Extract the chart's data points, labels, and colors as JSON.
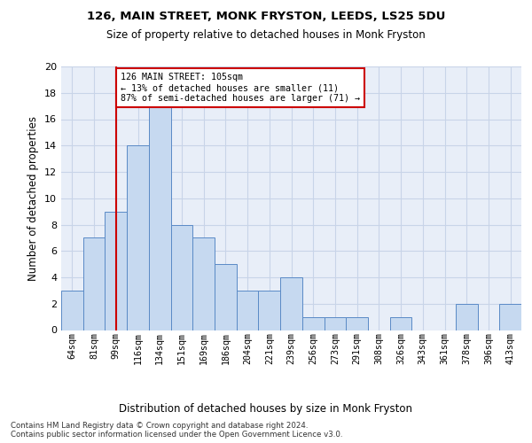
{
  "title1": "126, MAIN STREET, MONK FRYSTON, LEEDS, LS25 5DU",
  "title2": "Size of property relative to detached houses in Monk Fryston",
  "xlabel": "Distribution of detached houses by size in Monk Fryston",
  "ylabel": "Number of detached properties",
  "categories": [
    "64sqm",
    "81sqm",
    "99sqm",
    "116sqm",
    "134sqm",
    "151sqm",
    "169sqm",
    "186sqm",
    "204sqm",
    "221sqm",
    "239sqm",
    "256sqm",
    "273sqm",
    "291sqm",
    "308sqm",
    "326sqm",
    "343sqm",
    "361sqm",
    "378sqm",
    "396sqm",
    "413sqm"
  ],
  "values": [
    3,
    7,
    9,
    14,
    17,
    8,
    7,
    5,
    3,
    3,
    4,
    1,
    1,
    1,
    0,
    1,
    0,
    0,
    2,
    0,
    2
  ],
  "bar_color": "#c6d9f0",
  "bar_edge_color": "#5a8ac6",
  "vline_x": 2,
  "vline_color": "#cc0000",
  "annotation_text": "126 MAIN STREET: 105sqm\n← 13% of detached houses are smaller (11)\n87% of semi-detached houses are larger (71) →",
  "annotation_box_color": "#ffffff",
  "annotation_box_edge": "#cc0000",
  "ylim": [
    0,
    20
  ],
  "yticks": [
    0,
    2,
    4,
    6,
    8,
    10,
    12,
    14,
    16,
    18,
    20
  ],
  "grid_color": "#c8d4e8",
  "footer1": "Contains HM Land Registry data © Crown copyright and database right 2024.",
  "footer2": "Contains public sector information licensed under the Open Government Licence v3.0.",
  "bg_color": "#e8eef8"
}
